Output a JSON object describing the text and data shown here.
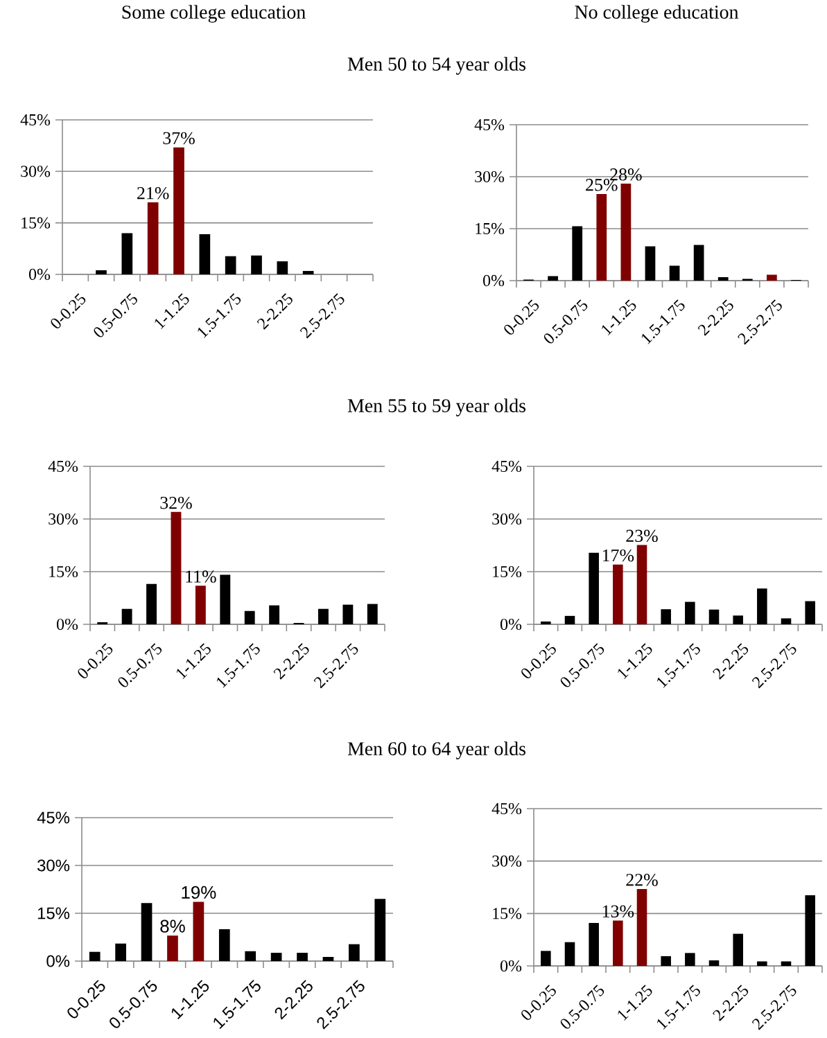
{
  "chart_data": [
    {
      "type": "bar",
      "subtitle": "Some college education",
      "title": "Men 50 to 54 year olds",
      "categories": [
        "0-0.25",
        null,
        "0.5-0.75",
        null,
        "1-1.25",
        null,
        "1.5-1.75",
        null,
        "2-2.25",
        null,
        "2.5-2.75",
        null
      ],
      "values": [
        0,
        1.2,
        12.0,
        21,
        37,
        11.7,
        5.3,
        5.5,
        3.8,
        1.0,
        0,
        0
      ],
      "colors": [
        "#000000",
        "#000000",
        "#000000",
        "#800000",
        "#800000",
        "#000000",
        "#000000",
        "#000000",
        "#000000",
        "#000000",
        "#000000",
        "#000000"
      ],
      "value_labels": [
        null,
        null,
        null,
        "21%",
        "37%",
        null,
        null,
        null,
        null,
        null,
        null,
        null
      ],
      "ylim": [
        0,
        45
      ],
      "yticks": [
        {
          "value": 0,
          "label": "0%"
        },
        {
          "value": 15,
          "label": "15%"
        },
        {
          "value": 30,
          "label": "30%"
        },
        {
          "value": 45,
          "label": "45%"
        }
      ],
      "grid": "y"
    },
    {
      "type": "bar",
      "subtitle": "No college education",
      "categories": [
        "0-0.25",
        null,
        "0.5-0.75",
        null,
        "1-1.25",
        null,
        "1.5-1.75",
        null,
        "2-2.25",
        null,
        "2.5-2.75",
        null
      ],
      "values": [
        0.3,
        1.3,
        15.7,
        25,
        28,
        9.9,
        4.3,
        10.3,
        1.0,
        0.5,
        1.7,
        0.2
      ],
      "colors": [
        "#000000",
        "#000000",
        "#000000",
        "#800000",
        "#800000",
        "#000000",
        "#000000",
        "#000000",
        "#000000",
        "#000000",
        "#800000",
        "#000000"
      ],
      "value_labels": [
        null,
        null,
        null,
        "25%",
        "28%",
        null,
        null,
        null,
        null,
        null,
        null,
        null
      ],
      "ylim": [
        0,
        45
      ],
      "yticks": [
        {
          "value": 0,
          "label": "0%"
        },
        {
          "value": 15,
          "label": "15%"
        },
        {
          "value": 30,
          "label": "30%"
        },
        {
          "value": 45,
          "label": "45%"
        }
      ],
      "grid": "y"
    },
    {
      "type": "bar",
      "title": "Men 55 to 59 year olds",
      "categories": [
        "0-0.25",
        null,
        "0.5-0.75",
        null,
        "1-1.25",
        null,
        "1.5-1.75",
        null,
        "2-2.25",
        null,
        "2.5-2.75",
        null
      ],
      "values": [
        0.6,
        4.4,
        11.5,
        32,
        11,
        14.1,
        3.8,
        5.4,
        0.4,
        4.4,
        5.6,
        5.8
      ],
      "colors": [
        "#000000",
        "#000000",
        "#000000",
        "#800000",
        "#800000",
        "#000000",
        "#000000",
        "#000000",
        "#000000",
        "#000000",
        "#000000",
        "#000000"
      ],
      "value_labels": [
        null,
        null,
        null,
        "32%",
        "11%",
        null,
        null,
        null,
        null,
        null,
        null,
        null
      ],
      "ylim": [
        0,
        45
      ],
      "yticks": [
        {
          "value": 0,
          "label": "0%"
        },
        {
          "value": 15,
          "label": "15%"
        },
        {
          "value": 30,
          "label": "30%"
        },
        {
          "value": 45,
          "label": "45%"
        }
      ],
      "grid": "y"
    },
    {
      "type": "bar",
      "categories": [
        "0-0.25",
        null,
        "0.5-0.75",
        null,
        "1-1.25",
        null,
        "1.5-1.75",
        null,
        "2-2.25",
        null,
        "2.5-2.75",
        null
      ],
      "values": [
        0.8,
        2.4,
        20.4,
        17,
        22.6,
        4.3,
        6.4,
        4.2,
        2.5,
        10.2,
        1.7,
        6.6
      ],
      "colors": [
        "#000000",
        "#000000",
        "#000000",
        "#800000",
        "#800000",
        "#000000",
        "#000000",
        "#000000",
        "#000000",
        "#000000",
        "#000000",
        "#000000"
      ],
      "value_labels": [
        null,
        null,
        null,
        "17%",
        "23%",
        null,
        null,
        null,
        null,
        null,
        null,
        null
      ],
      "ylim": [
        0,
        45
      ],
      "yticks": [
        {
          "value": 0,
          "label": "0%"
        },
        {
          "value": 15,
          "label": "15%"
        },
        {
          "value": 30,
          "label": "30%"
        },
        {
          "value": 45,
          "label": "45%"
        }
      ],
      "grid": "y"
    },
    {
      "type": "bar",
      "title": "Men 60 to 64 year olds",
      "categories": [
        "0-0.25",
        null,
        "0.5-0.75",
        null,
        "1-1.25",
        null,
        "1.5-1.75",
        null,
        "2-2.25",
        null,
        "2.5-2.75",
        null
      ],
      "values": [
        2.9,
        5.5,
        18.2,
        8,
        18.6,
        10.0,
        3.1,
        2.6,
        2.6,
        1.3,
        5.3,
        19.5
      ],
      "colors": [
        "#000000",
        "#000000",
        "#000000",
        "#800000",
        "#800000",
        "#000000",
        "#000000",
        "#000000",
        "#000000",
        "#000000",
        "#000000",
        "#000000"
      ],
      "value_labels": [
        null,
        null,
        null,
        "8%",
        "19%",
        null,
        null,
        null,
        null,
        null,
        null,
        null
      ],
      "ylim": [
        0,
        45
      ],
      "yticks": [
        {
          "value": 0,
          "label": "0%"
        },
        {
          "value": 15,
          "label": "15%"
        },
        {
          "value": 30,
          "label": "30%"
        },
        {
          "value": 45,
          "label": "45%"
        }
      ],
      "grid": "y"
    },
    {
      "type": "bar",
      "categories": [
        "0-0.25",
        null,
        "0.5-0.75",
        null,
        "1-1.25",
        null,
        "1.5-1.75",
        null,
        "2-2.25",
        null,
        "2.5-2.75",
        null
      ],
      "values": [
        4.3,
        6.8,
        12.3,
        13,
        22,
        2.8,
        3.7,
        1.6,
        9.2,
        1.3,
        1.3,
        20.2
      ],
      "colors": [
        "#000000",
        "#000000",
        "#000000",
        "#800000",
        "#800000",
        "#000000",
        "#000000",
        "#000000",
        "#000000",
        "#000000",
        "#000000",
        "#000000"
      ],
      "value_labels": [
        null,
        null,
        null,
        "13%",
        "22%",
        null,
        null,
        null,
        null,
        null,
        null,
        null
      ],
      "ylim": [
        0,
        45
      ],
      "yticks": [
        {
          "value": 0,
          "label": "0%"
        },
        {
          "value": 15,
          "label": "15%"
        },
        {
          "value": 30,
          "label": "30%"
        },
        {
          "value": 45,
          "label": "45%"
        }
      ],
      "grid": "y"
    }
  ]
}
